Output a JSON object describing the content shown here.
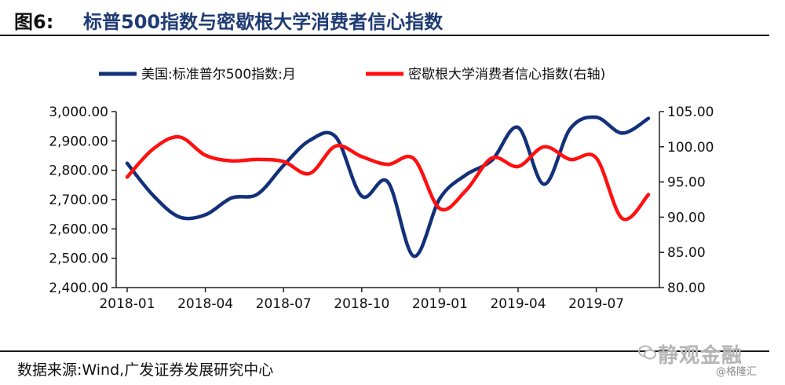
{
  "header": {
    "label": "图6:",
    "title": "标普500指数与密歇根大学消费者信心指数"
  },
  "footer": {
    "source": "数据来源:Wind,广发证券发展研究中心",
    "watermark_main": "静观金融",
    "watermark_sub": "@格隆汇"
  },
  "colors": {
    "series_left": "#13307a",
    "series_right": "#ff1010",
    "title": "#1f3b73"
  },
  "chart_data": {
    "type": "line",
    "title": "",
    "x": [
      "2018-01",
      "2018-02",
      "2018-03",
      "2018-04",
      "2018-05",
      "2018-06",
      "2018-07",
      "2018-08",
      "2018-09",
      "2018-10",
      "2018-11",
      "2018-12",
      "2019-01",
      "2019-02",
      "2019-03",
      "2019-04",
      "2019-05",
      "2019-06",
      "2019-07",
      "2019-08",
      "2019-09"
    ],
    "xticks": [
      "2018-01",
      "2018-04",
      "2018-07",
      "2018-10",
      "2019-01",
      "2019-04",
      "2019-07"
    ],
    "y_left": {
      "ylim": [
        2400,
        3000
      ],
      "ticks": [
        "2,400.00",
        "2,500.00",
        "2,600.00",
        "2,700.00",
        "2,800.00",
        "2,900.00",
        "3,000.00"
      ]
    },
    "y_right": {
      "ylim": [
        80,
        105
      ],
      "ticks": [
        "80.00",
        "85.00",
        "90.00",
        "95.00",
        "100.00",
        "105.00"
      ]
    },
    "legend_position": "top",
    "grid": false,
    "series": [
      {
        "name": "美国:标准普尔500指数:月",
        "axis": "left",
        "values": [
          2823.8,
          2713.8,
          2640.9,
          2648.1,
          2705.3,
          2718.4,
          2816.3,
          2901.5,
          2913.9,
          2711.7,
          2760.2,
          2506.9,
          2704.1,
          2784.5,
          2834.4,
          2945.8,
          2752.1,
          2941.8,
          2980.4,
          2926.5,
          2976.7
        ]
      },
      {
        "name": "密歇根大学消费者信心指数(右轴)",
        "axis": "right",
        "values": [
          95.7,
          99.7,
          101.4,
          98.8,
          98.0,
          98.2,
          97.9,
          96.2,
          100.1,
          98.6,
          97.5,
          98.3,
          91.2,
          93.8,
          98.4,
          97.2,
          100.0,
          98.2,
          98.4,
          89.8,
          93.2
        ]
      }
    ]
  }
}
